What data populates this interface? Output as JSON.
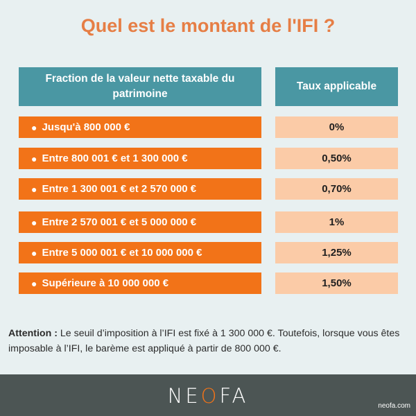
{
  "title": "Quel est le montant de l'IFI ?",
  "table": {
    "header_fraction": "Fraction de la valeur nette taxable du patrimoine",
    "header_rate": "Taux applicable",
    "rows": [
      {
        "fraction": "Jusqu'à 800 000 €",
        "rate": "0%"
      },
      {
        "fraction": "Entre 800 001 € et 1 300 000 €",
        "rate": "0,50%"
      },
      {
        "fraction": "Entre 1 300 001 € et 2 570 000 €",
        "rate": "0,70%"
      },
      {
        "fraction": "Entre 2 570 001 € et 5 000 000 €",
        "rate": "1%"
      },
      {
        "fraction": "Entre 5 000 001 € et 10 000 000 €",
        "rate": "1,25%"
      },
      {
        "fraction": "Supérieure à 10 000 000 €",
        "rate": "1,50%"
      }
    ]
  },
  "note": {
    "label": "Attention :",
    "text": "Le seuil d’imposition à l’IFI est fixé à 1 300 000 €. Toutefois, lorsque vous êtes imposable à l’IFI, le barème est appliqué à partir de 800 000 €."
  },
  "footer": {
    "logo_parts": [
      "NE",
      "O",
      "FA"
    ],
    "site": "neofa.com"
  },
  "colors": {
    "title": "#e67e45",
    "header_bg": "#4a97a3",
    "fraction_bg": "#f27318",
    "rate_bg": "#fbcba7",
    "panel_bg": "#e8f0f1",
    "footer_bg": "#4c5554"
  }
}
